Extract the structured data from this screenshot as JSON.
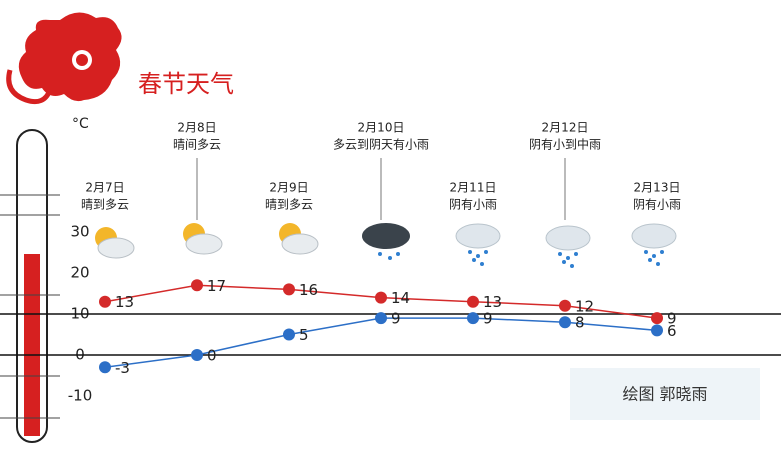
{
  "chart_data": {
    "type": "line",
    "title": "春节天气",
    "y_unit": "°C",
    "credit": "绘图 郭晓雨",
    "categories": [
      "2月7日",
      "2月8日",
      "2月9日",
      "2月10日",
      "2月11日",
      "2月12日",
      "2月13日"
    ],
    "descriptions": [
      "晴到多云",
      "晴间多云",
      "晴到多云",
      "多云到阴天有小雨",
      "阴有小雨",
      "阴有小到中雨",
      "阴有小雨"
    ],
    "series": [
      {
        "color": "#d42a2a",
        "values": [
          13,
          17,
          16,
          14,
          13,
          12,
          9
        ]
      },
      {
        "color": "#2c6fc7",
        "values": [
          -3,
          0,
          5,
          9,
          9,
          8,
          6
        ]
      }
    ],
    "ylim": [
      -20,
      50
    ],
    "yticks": [
      -10,
      0,
      10,
      20,
      30
    ],
    "reference_lines": [
      0,
      10
    ]
  }
}
